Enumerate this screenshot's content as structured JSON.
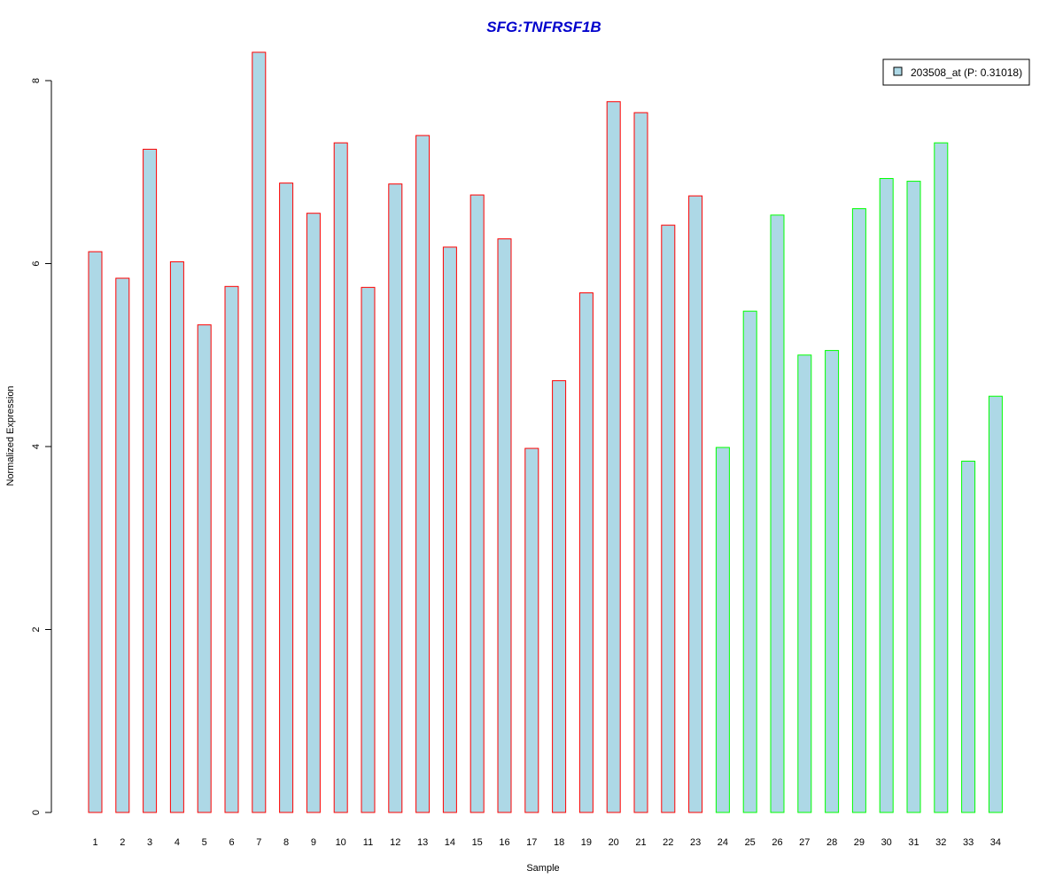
{
  "chart_data": {
    "type": "bar",
    "title": "SFG:TNFRSF1B",
    "xlabel": "Sample",
    "ylabel": "Normalized Expression",
    "ylim": [
      0,
      8.4
    ],
    "yticks": [
      "0",
      "2",
      "4",
      "6",
      "8"
    ],
    "categories": [
      "1",
      "2",
      "3",
      "4",
      "5",
      "6",
      "7",
      "8",
      "9",
      "10",
      "11",
      "12",
      "13",
      "14",
      "15",
      "16",
      "17",
      "18",
      "19",
      "20",
      "21",
      "22",
      "23",
      "24",
      "25",
      "26",
      "27",
      "28",
      "29",
      "30",
      "31",
      "32",
      "33",
      "34"
    ],
    "series": [
      {
        "name": "203508_at (P: 0.31018)",
        "values": [
          6.13,
          5.84,
          7.25,
          6.02,
          5.33,
          5.75,
          8.31,
          6.88,
          6.55,
          7.32,
          5.74,
          6.87,
          7.4,
          6.18,
          6.75,
          6.27,
          3.98,
          4.72,
          5.68,
          7.77,
          7.65,
          6.42,
          6.74,
          3.99,
          5.48,
          6.53,
          5.0,
          5.05,
          6.6,
          6.93,
          6.9,
          7.32,
          3.84,
          4.55
        ]
      }
    ],
    "groups": [
      "a",
      "a",
      "a",
      "a",
      "a",
      "a",
      "a",
      "a",
      "a",
      "a",
      "a",
      "a",
      "a",
      "a",
      "a",
      "a",
      "a",
      "a",
      "a",
      "a",
      "a",
      "a",
      "a",
      "b",
      "b",
      "b",
      "b",
      "b",
      "b",
      "b",
      "b",
      "b",
      "b",
      "b"
    ],
    "grid": false,
    "legend_position": "top-right"
  },
  "colors": {
    "title": "#0000cc",
    "bar_fill": "#add8e6",
    "border_group_a": "#ff0000",
    "border_group_b": "#00ff00",
    "axis": "#000000",
    "legend_border": "#000000"
  }
}
